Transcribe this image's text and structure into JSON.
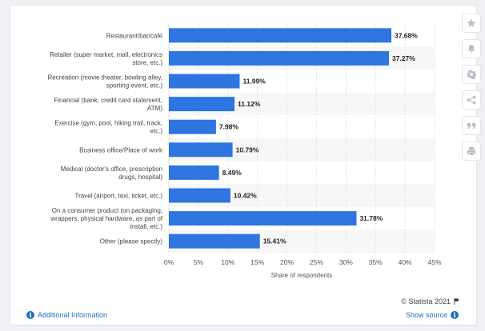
{
  "chart_data": {
    "type": "bar",
    "orientation": "horizontal",
    "categories": [
      [
        "Restaurant/bar/café"
      ],
      [
        "Retailer (super market, mall, electronics",
        "store, etc.)"
      ],
      [
        "Recreation (movie theater, bowling alley,",
        "sporting event, etc.)"
      ],
      [
        "Financial (bank, credit card statement,",
        "ATM)"
      ],
      [
        "Exercise (gym, pool, hiking trail, track,",
        "etc.)"
      ],
      [
        "Business office/Place of work"
      ],
      [
        "Medical (doctor's office, prescription",
        "drugs, hospital)"
      ],
      [
        "Travel (airport, taxi, ticket, etc.)"
      ],
      [
        "On a consumer product (on packaging,",
        "wrappers, physical hardware, as part of",
        "install, etc.)"
      ],
      [
        "Other (please specify)"
      ]
    ],
    "values": [
      37.68,
      37.27,
      11.99,
      11.12,
      7.98,
      10.79,
      8.49,
      10.42,
      31.78,
      15.41
    ],
    "value_labels": [
      "37.68%",
      "37.27%",
      "11.99%",
      "11.12%",
      "7.98%",
      "10.79%",
      "8.49%",
      "10.42%",
      "31.78%",
      "15.41%"
    ],
    "xlim": [
      0,
      45
    ],
    "xticks": [
      "0%",
      "5%",
      "10%",
      "15%",
      "20%",
      "25%",
      "30%",
      "35%",
      "40%",
      "45%"
    ],
    "xlabel": "Share of respondents",
    "bar_color": "#2e75e0",
    "grid": true
  },
  "footer": {
    "credit": "© Statista 2021",
    "additional_info": "Additional Information",
    "show_source": "Show source"
  },
  "sidebar": [
    "star-icon",
    "bell-icon",
    "gear-icon",
    "share-icon",
    "quote-icon",
    "print-icon"
  ]
}
